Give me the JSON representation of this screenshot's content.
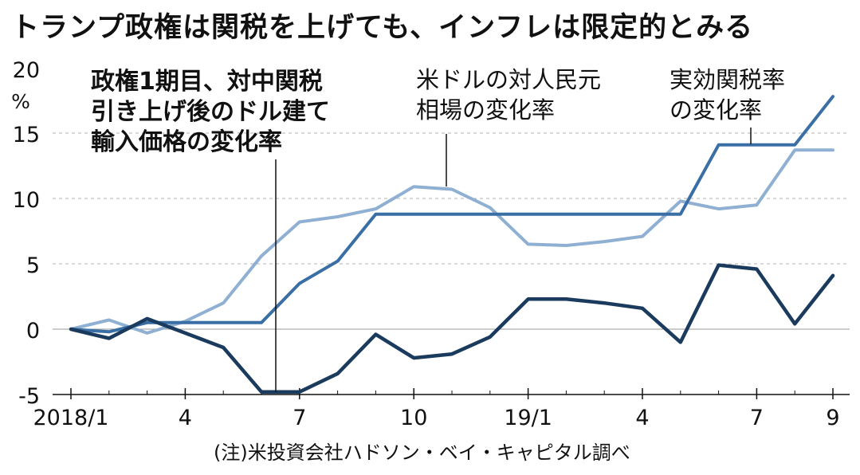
{
  "chart_data": {
    "type": "line",
    "title": "トランプ政権は関税を上げても、インフレは限定的とみる",
    "unit_label": [
      "20",
      "%"
    ],
    "x": [
      "2018/1",
      "2018/2",
      "2018/3",
      "2018/4",
      "2018/5",
      "2018/6",
      "2018/7",
      "2018/8",
      "2018/9",
      "2018/10",
      "2018/11",
      "2018/12",
      "19/1",
      "19/2",
      "19/3",
      "19/4",
      "19/5",
      "19/6",
      "19/7",
      "19/8",
      "19/9"
    ],
    "xticks": [
      {
        "label": "2018/1",
        "x": "2018/1"
      },
      {
        "label": "4",
        "x": "2018/4"
      },
      {
        "label": "7",
        "x": "2018/7"
      },
      {
        "label": "10",
        "x": "2018/10"
      },
      {
        "label": "19/1",
        "x": "19/1"
      },
      {
        "label": "4",
        "x": "19/4"
      },
      {
        "label": "7",
        "x": "19/7"
      },
      {
        "label": "9",
        "x": "19/9"
      }
    ],
    "ylim": [
      -5,
      20
    ],
    "yticks": [
      "-5",
      "0",
      "5",
      "10",
      "15"
    ],
    "grid": "horizontal dashed",
    "series": [
      {
        "name": "政権1期目、対中関税引き上げ後のドル建て輸入価格の変化率",
        "label_lines": [
          "政権1期目、対中関税",
          "引き上げ後のドル建て",
          "輸入価格の変化率"
        ],
        "label_bold": true,
        "color": "#1a3a5e",
        "values": [
          0,
          -0.7,
          0.8,
          -0.3,
          -1.4,
          -4.8,
          -4.8,
          -3.4,
          -0.4,
          -2.2,
          -1.9,
          -0.6,
          2.3,
          2.3,
          2.0,
          1.6,
          -1.0,
          4.9,
          4.6,
          0.4,
          4.1
        ]
      },
      {
        "name": "米ドルの対人民元相場の変化率",
        "label_lines": [
          "米ドルの対人民元",
          "相場の変化率"
        ],
        "label_bold": false,
        "color": "#8fb0d2",
        "values": [
          0,
          0.7,
          -0.3,
          0.6,
          2.0,
          5.6,
          8.2,
          8.6,
          9.2,
          10.9,
          10.7,
          9.3,
          6.5,
          6.4,
          6.7,
          7.1,
          9.8,
          9.2,
          9.5,
          13.7,
          13.7
        ]
      },
      {
        "name": "実効関税率の変化率",
        "label_lines": [
          "実効関税率",
          "の変化率"
        ],
        "label_bold": false,
        "color": "#3a6fa6",
        "values": [
          0,
          -0.2,
          0.5,
          0.5,
          0.5,
          0.5,
          3.5,
          5.2,
          8.8,
          8.8,
          8.8,
          8.8,
          8.8,
          8.8,
          8.8,
          8.8,
          8.8,
          14.1,
          14.1,
          14.1,
          17.8
        ]
      }
    ],
    "note": "(注)米投資会社ハドソン・ベイ・キャピタル調べ"
  }
}
